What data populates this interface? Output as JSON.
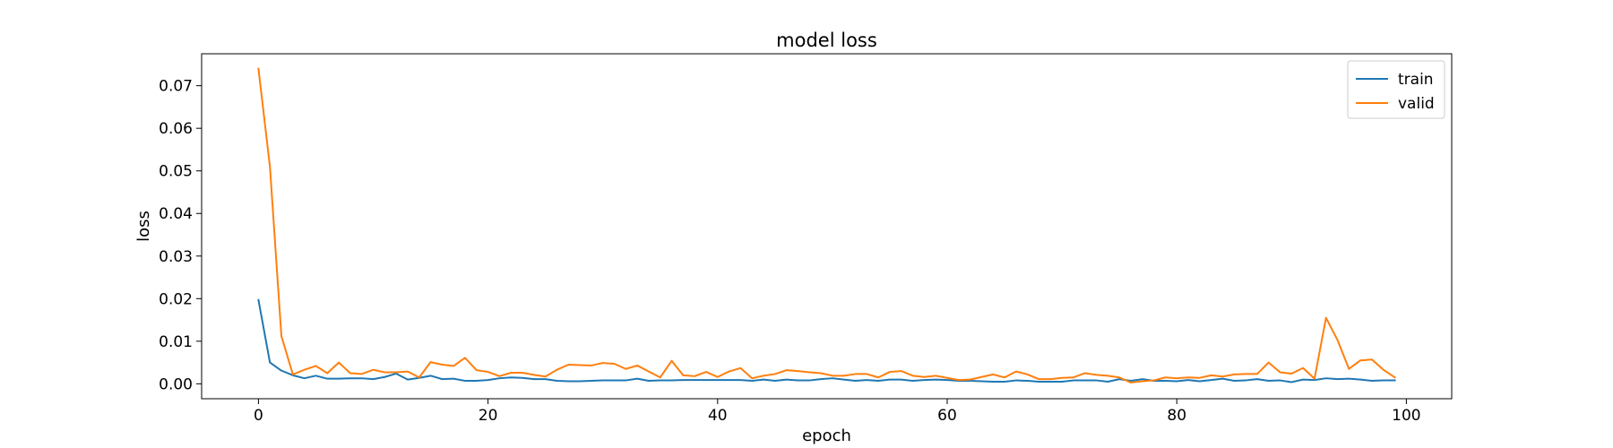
{
  "chart_data": {
    "type": "line",
    "title": "model loss",
    "xlabel": "epoch",
    "ylabel": "loss",
    "xlim": [
      -4.95,
      103.95
    ],
    "ylim": [
      -0.0035,
      0.0775
    ],
    "xticks": [
      0,
      20,
      40,
      60,
      80,
      100
    ],
    "xtick_labels": [
      "0",
      "20",
      "40",
      "60",
      "80",
      "100"
    ],
    "yticks": [
      0.0,
      0.01,
      0.02,
      0.03,
      0.04,
      0.05,
      0.06,
      0.07
    ],
    "ytick_labels": [
      "0.00",
      "0.01",
      "0.02",
      "0.03",
      "0.04",
      "0.05",
      "0.06",
      "0.07"
    ],
    "grid": false,
    "legend_position": "top-right",
    "series": [
      {
        "name": "train",
        "color": "#1f77b4",
        "x_start": 0,
        "values": [
          0.0197,
          0.005,
          0.0031,
          0.002,
          0.0013,
          0.0019,
          0.0012,
          0.0012,
          0.0013,
          0.0013,
          0.0011,
          0.0016,
          0.0024,
          0.001,
          0.0014,
          0.0019,
          0.0011,
          0.0012,
          0.0007,
          0.0007,
          0.0009,
          0.0013,
          0.0015,
          0.0014,
          0.0011,
          0.0011,
          0.0007,
          0.0006,
          0.0006,
          0.0007,
          0.0008,
          0.0008,
          0.0008,
          0.0012,
          0.0007,
          0.0008,
          0.0008,
          0.0009,
          0.0009,
          0.0009,
          0.0009,
          0.0009,
          0.0009,
          0.0007,
          0.001,
          0.0007,
          0.001,
          0.0008,
          0.0008,
          0.0011,
          0.0013,
          0.001,
          0.0007,
          0.0009,
          0.0007,
          0.001,
          0.001,
          0.0007,
          0.0009,
          0.001,
          0.0009,
          0.0007,
          0.0007,
          0.0006,
          0.0005,
          0.0005,
          0.0008,
          0.0007,
          0.0005,
          0.0005,
          0.0005,
          0.0008,
          0.0008,
          0.0008,
          0.0005,
          0.0011,
          0.0007,
          0.0011,
          0.0007,
          0.0007,
          0.0006,
          0.0009,
          0.0006,
          0.0009,
          0.0012,
          0.0007,
          0.0008,
          0.0011,
          0.0007,
          0.0008,
          0.0004,
          0.001,
          0.0009,
          0.0013,
          0.0011,
          0.0012,
          0.001,
          0.0007,
          0.0008,
          0.0008
        ]
      },
      {
        "name": "valid",
        "color": "#ff7f0e",
        "x_start": 0,
        "values": [
          0.074,
          0.051,
          0.0112,
          0.0022,
          0.0033,
          0.0042,
          0.0025,
          0.005,
          0.0025,
          0.0023,
          0.0033,
          0.0027,
          0.0027,
          0.0029,
          0.0015,
          0.0051,
          0.0045,
          0.0042,
          0.0061,
          0.0032,
          0.0028,
          0.0018,
          0.0026,
          0.0026,
          0.0021,
          0.0017,
          0.0033,
          0.0045,
          0.0044,
          0.0043,
          0.0049,
          0.0047,
          0.0035,
          0.0043,
          0.0029,
          0.0015,
          0.0054,
          0.002,
          0.0018,
          0.0028,
          0.0016,
          0.0029,
          0.0037,
          0.0013,
          0.0019,
          0.0023,
          0.0032,
          0.003,
          0.0027,
          0.0025,
          0.0019,
          0.0019,
          0.0023,
          0.0023,
          0.0015,
          0.0028,
          0.003,
          0.0019,
          0.0016,
          0.0019,
          0.0014,
          0.0009,
          0.001,
          0.0016,
          0.0022,
          0.0015,
          0.0029,
          0.0022,
          0.0011,
          0.0011,
          0.0014,
          0.0015,
          0.0025,
          0.0021,
          0.0019,
          0.0015,
          0.0003,
          0.0006,
          0.0008,
          0.0015,
          0.0013,
          0.0015,
          0.0014,
          0.002,
          0.0017,
          0.0022,
          0.0023,
          0.0023,
          0.005,
          0.0027,
          0.0024,
          0.0037,
          0.0012,
          0.0155,
          0.0103,
          0.0035,
          0.0055,
          0.0057,
          0.0033,
          0.0015
        ]
      }
    ]
  }
}
